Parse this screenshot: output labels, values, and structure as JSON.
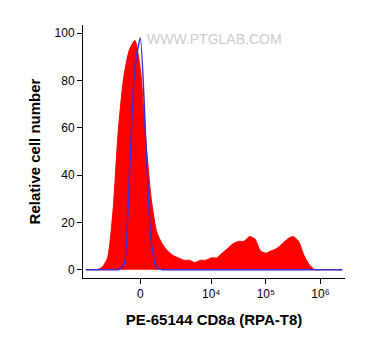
{
  "chart_data": {
    "type": "histogram",
    "x_label": "PE-65144 CD8a (RPA-T8)",
    "y_label": "Relative cell number",
    "annotations": [
      {
        "text": "WWW.PTGLAB.COM"
      }
    ],
    "categories": [
      null,
      null,
      null,
      null,
      null,
      null,
      null,
      null,
      null,
      null,
      "0",
      null,
      null,
      null,
      null,
      null,
      null,
      null,
      null,
      null,
      null,
      null,
      null,
      "10⁴",
      null,
      null,
      null,
      null,
      null,
      null,
      null,
      null,
      null,
      "10⁵",
      null,
      null,
      null,
      null,
      null,
      null,
      null,
      null,
      null,
      "10⁶",
      null,
      null,
      null,
      null
    ],
    "series": [
      {
        "type": "area",
        "color": "#ff0000",
        "values": [
          0,
          0,
          0,
          1,
          5,
          25,
          60,
          82,
          93,
          97,
          85,
          55,
          30,
          16,
          11,
          8,
          6,
          5,
          4,
          4,
          3,
          4,
          4,
          5,
          5,
          7,
          9,
          11,
          12,
          12,
          14,
          13,
          8,
          7,
          8,
          9,
          11,
          13,
          14,
          12,
          6,
          2,
          0,
          0,
          0,
          0,
          0,
          0
        ]
      },
      {
        "type": "line",
        "color": "#3a2fd6",
        "values": [
          0,
          0,
          0,
          0,
          0,
          0,
          0,
          2,
          40,
          85,
          98,
          55,
          12,
          1,
          0,
          0,
          0,
          0,
          0,
          0,
          0,
          0,
          0,
          0,
          0,
          0,
          0,
          0,
          0,
          0,
          0,
          0,
          0,
          0,
          0,
          0,
          0,
          0,
          0,
          0,
          0,
          0,
          0,
          0,
          0,
          0,
          0,
          0
        ]
      }
    ],
    "ylim": [
      -3.5,
      103.5
    ],
    "yticks": [
      0,
      20,
      40,
      60,
      80,
      100
    ],
    "grid": false
  }
}
